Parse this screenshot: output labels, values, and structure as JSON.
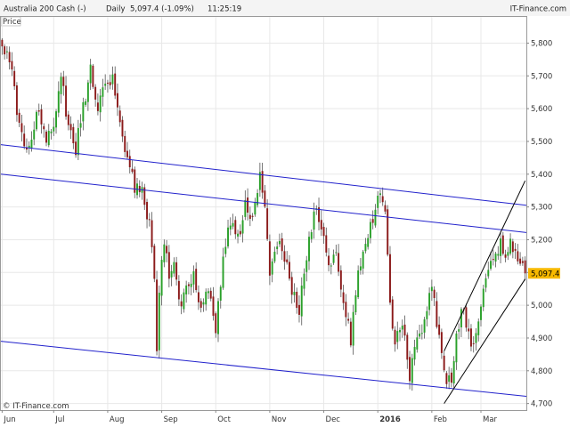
{
  "header": {
    "instrument": "Australia 200 Cash (-)",
    "timeframe": "Daily",
    "quote": "5,097.4 (-1.09%)",
    "time": "11:25:19",
    "brand": "IT-Finance.com"
  },
  "panel": {
    "label": "Price"
  },
  "watermark": "© IT-Finance.com",
  "last_price_label": "5,097.4",
  "colors": {
    "up": "#2aa02a",
    "down": "#8b1a1a",
    "wick": "#555555",
    "channel": "#2222cc",
    "trend": "#000000",
    "grid": "#e8e8e8",
    "badge": "#f7b900"
  },
  "chart_data": {
    "type": "candlestick",
    "title": "Australia 200 Cash (-)",
    "ylim": [
      4680,
      5880
    ],
    "y_ticks": [
      "4,700",
      "4,800",
      "4,900",
      "5,000",
      "5,100",
      "5,200",
      "5,300",
      "5,400",
      "5,500",
      "5,600",
      "5,700",
      "5,800"
    ],
    "y_tick_values": [
      4700,
      4800,
      4900,
      5000,
      5100,
      5200,
      5300,
      5400,
      5500,
      5600,
      5700,
      5800
    ],
    "x_ticks": [
      "Jun",
      "Jul",
      "Aug",
      "Sep",
      "Oct",
      "Nov",
      "Dec",
      "2016",
      "Feb",
      "Mar"
    ],
    "x_tick_index": [
      0,
      21,
      43,
      65,
      87,
      109,
      131,
      153,
      175,
      195
    ],
    "n_bars": 214,
    "last_price": 5097.4,
    "anchors": [
      [
        0,
        5790
      ],
      [
        3,
        5760
      ],
      [
        6,
        5600
      ],
      [
        9,
        5480
      ],
      [
        12,
        5520
      ],
      [
        15,
        5600
      ],
      [
        18,
        5500
      ],
      [
        21,
        5560
      ],
      [
        24,
        5700
      ],
      [
        27,
        5540
      ],
      [
        30,
        5480
      ],
      [
        33,
        5600
      ],
      [
        36,
        5720
      ],
      [
        39,
        5600
      ],
      [
        42,
        5680
      ],
      [
        45,
        5700
      ],
      [
        48,
        5560
      ],
      [
        51,
        5440
      ],
      [
        54,
        5360
      ],
      [
        57,
        5350
      ],
      [
        60,
        5250
      ],
      [
        62,
        5100
      ],
      [
        63,
        4840
      ],
      [
        64,
        5050
      ],
      [
        66,
        5200
      ],
      [
        68,
        5100
      ],
      [
        70,
        5150
      ],
      [
        72,
        5000
      ],
      [
        75,
        5050
      ],
      [
        78,
        5100
      ],
      [
        81,
        4980
      ],
      [
        84,
        5050
      ],
      [
        87,
        4920
      ],
      [
        90,
        5150
      ],
      [
        93,
        5250
      ],
      [
        96,
        5200
      ],
      [
        99,
        5300
      ],
      [
        102,
        5270
      ],
      [
        105,
        5390
      ],
      [
        107,
        5300
      ],
      [
        109,
        5100
      ],
      [
        112,
        5200
      ],
      [
        115,
        5150
      ],
      [
        118,
        5050
      ],
      [
        121,
        4990
      ],
      [
        124,
        5150
      ],
      [
        127,
        5290
      ],
      [
        130,
        5250
      ],
      [
        133,
        5100
      ],
      [
        136,
        5150
      ],
      [
        139,
        5000
      ],
      [
        142,
        4900
      ],
      [
        145,
        5100
      ],
      [
        148,
        5200
      ],
      [
        151,
        5250
      ],
      [
        153,
        5340
      ],
      [
        156,
        5300
      ],
      [
        158,
        5000
      ],
      [
        160,
        4900
      ],
      [
        163,
        4950
      ],
      [
        166,
        4790
      ],
      [
        169,
        4900
      ],
      [
        172,
        4950
      ],
      [
        175,
        5050
      ],
      [
        178,
        4900
      ],
      [
        181,
        4780
      ],
      [
        183,
        4750
      ],
      [
        185,
        4900
      ],
      [
        188,
        5000
      ],
      [
        190,
        4900
      ],
      [
        192,
        4880
      ],
      [
        195,
        5000
      ],
      [
        198,
        5100
      ],
      [
        201,
        5150
      ],
      [
        203,
        5200
      ],
      [
        205,
        5150
      ],
      [
        207,
        5200
      ],
      [
        209,
        5160
      ],
      [
        211,
        5140
      ],
      [
        213,
        5097
      ]
    ],
    "channel_lines": [
      {
        "name": "upper",
        "from": [
          0,
          5490
        ],
        "to": [
          213,
          5305
        ]
      },
      {
        "name": "middle",
        "from": [
          0,
          5400
        ],
        "to": [
          213,
          5222
        ]
      },
      {
        "name": "lower",
        "from": [
          0,
          4890
        ],
        "to": [
          213,
          4722
        ]
      }
    ],
    "trend_lines": [
      {
        "name": "rising-channel-top",
        "from": [
          180,
          4860
        ],
        "to": [
          213,
          5380
        ]
      },
      {
        "name": "rising-channel-bottom",
        "from": [
          180,
          4700
        ],
        "to": [
          213,
          5080
        ]
      }
    ]
  }
}
